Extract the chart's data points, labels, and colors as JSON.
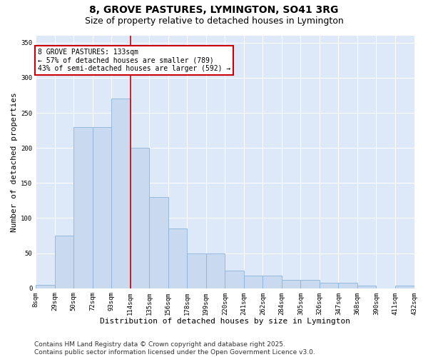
{
  "title": "8, GROVE PASTURES, LYMINGTON, SO41 3RG",
  "subtitle": "Size of property relative to detached houses in Lymington",
  "xlabel": "Distribution of detached houses by size in Lymington",
  "ylabel": "Number of detached properties",
  "categories": [
    "8sqm",
    "29sqm",
    "50sqm",
    "72sqm",
    "93sqm",
    "114sqm",
    "135sqm",
    "156sqm",
    "178sqm",
    "199sqm",
    "220sqm",
    "241sqm",
    "262sqm",
    "284sqm",
    "305sqm",
    "326sqm",
    "347sqm",
    "368sqm",
    "390sqm",
    "411sqm",
    "432sqm"
  ],
  "bar_values": [
    5,
    75,
    230,
    230,
    270,
    200,
    130,
    85,
    50,
    50,
    25,
    18,
    18,
    12,
    12,
    8,
    8,
    4,
    0,
    4
  ],
  "bar_color": "#c9d9f0",
  "bar_edge_color": "#8ab4d9",
  "ref_line_x": 5.0,
  "ref_line_color": "#cc0000",
  "annotation_label": "8 GROVE PASTURES: 133sqm",
  "annotation_line1": "← 57% of detached houses are smaller (789)",
  "annotation_line2": "43% of semi-detached houses are larger (592) →",
  "annotation_box_color": "#ffffff",
  "annotation_box_edge": "#cc0000",
  "ylim": [
    0,
    360
  ],
  "yticks": [
    0,
    50,
    100,
    150,
    200,
    250,
    300,
    350
  ],
  "grid_color": "#ffffff",
  "plot_bg_color": "#dde8f8",
  "fig_bg_color": "#ffffff",
  "title_fontsize": 10,
  "subtitle_fontsize": 9,
  "xlabel_fontsize": 8,
  "ylabel_fontsize": 8,
  "tick_fontsize": 6.5,
  "annotation_fontsize": 7,
  "footer_fontsize": 6.5,
  "footer": "Contains HM Land Registry data © Crown copyright and database right 2025.\nContains public sector information licensed under the Open Government Licence v3.0."
}
